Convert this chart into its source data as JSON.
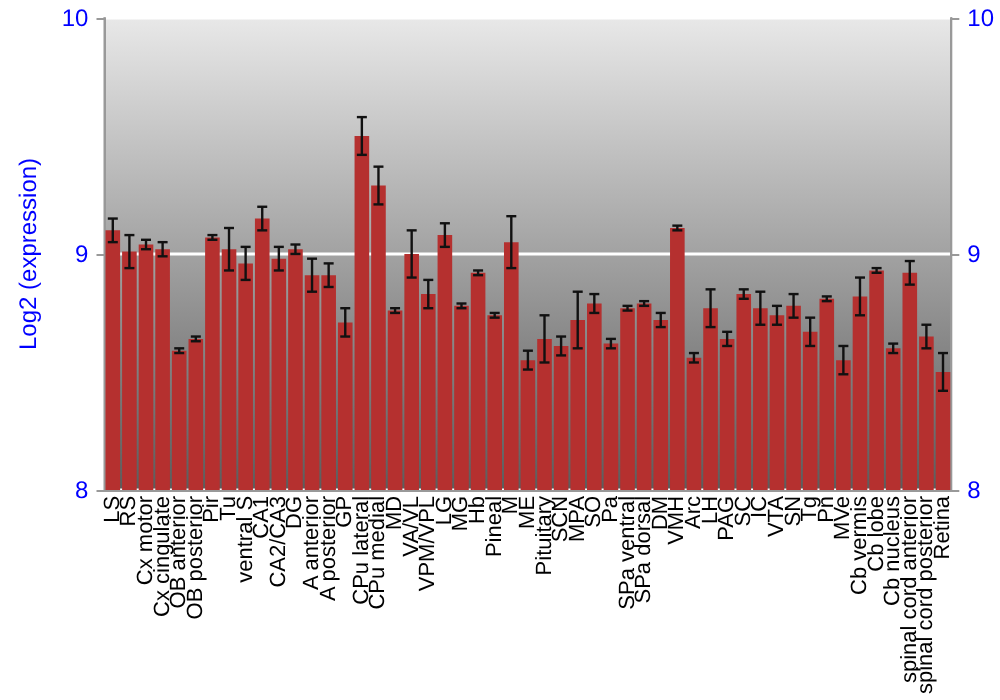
{
  "chart_data": {
    "type": "bar",
    "ylabel": "Log2 (expression)",
    "categories": [
      "LS",
      "RS",
      "Cx motor",
      "Cx cingulate",
      "OB anterior",
      "OB posterior",
      "Pir",
      "Tu",
      "ventral S",
      "CA1",
      "CA2/CA3",
      "DG",
      "A anterior",
      "A posterior",
      "GP",
      "CPu lateral",
      "CPu medial",
      "MD",
      "VA/VL",
      "VPM/VPL",
      "LG",
      "MG",
      "Hb",
      "Pineal",
      "M",
      "ME",
      "Pituitary",
      "SCN",
      "MPA",
      "SO",
      "Pa",
      "SPa ventral",
      "SPa dorsal",
      "DM",
      "VMH",
      "Arc",
      "LH",
      "PAG",
      "SC",
      "IC",
      "VTA",
      "SN",
      "Tg",
      "Pn",
      "MVe",
      "Cb vermis",
      "Cb lobe",
      "Cb nucleus",
      "spinal cord anterior",
      "spinal cord posterior",
      "Retina"
    ],
    "values": [
      9.1,
      9.01,
      9.04,
      9.02,
      8.59,
      8.64,
      9.07,
      9.02,
      8.96,
      9.15,
      8.98,
      9.02,
      8.91,
      8.91,
      8.71,
      9.5,
      9.29,
      8.76,
      9.0,
      8.83,
      9.08,
      8.78,
      8.92,
      8.74,
      9.05,
      8.55,
      8.64,
      8.61,
      8.72,
      8.79,
      8.62,
      8.77,
      8.79,
      8.72,
      9.11,
      8.56,
      8.77,
      8.64,
      8.83,
      8.77,
      8.74,
      8.78,
      8.67,
      8.81,
      8.55,
      8.82,
      8.93,
      8.6,
      8.92,
      8.65,
      8.5
    ],
    "errors": [
      0.05,
      0.07,
      0.02,
      0.03,
      0.01,
      0.01,
      0.01,
      0.09,
      0.07,
      0.05,
      0.05,
      0.02,
      0.07,
      0.05,
      0.06,
      0.08,
      0.08,
      0.01,
      0.1,
      0.06,
      0.05,
      0.01,
      0.01,
      0.01,
      0.11,
      0.04,
      0.1,
      0.04,
      0.12,
      0.04,
      0.02,
      0.01,
      0.01,
      0.03,
      0.01,
      0.02,
      0.08,
      0.03,
      0.02,
      0.07,
      0.04,
      0.05,
      0.06,
      0.01,
      0.06,
      0.08,
      0.01,
      0.02,
      0.05,
      0.05,
      0.08
    ],
    "color": "#b5302f",
    "ylim": [
      8,
      10
    ],
    "yticks": [
      8,
      9,
      10
    ],
    "y2lim": [
      8,
      10
    ],
    "y2ticks": [
      8,
      9,
      10
    ],
    "grid": "y"
  }
}
